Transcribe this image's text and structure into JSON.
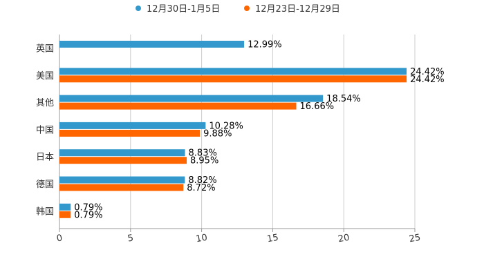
{
  "colors": {
    "series_1": "#3399cc",
    "series_2": "#ff6600",
    "grid": "#cccccc",
    "axis": "#999999",
    "text": "#333333",
    "label": "#000000"
  },
  "chart_data": {
    "type": "bar",
    "orientation": "horizontal",
    "title": "",
    "xlabel": "",
    "ylabel": "",
    "xlim": [
      0,
      25
    ],
    "x_ticks": [
      "0",
      "5",
      "10",
      "15",
      "20",
      "25"
    ],
    "x_tick_values": [
      0,
      5,
      10,
      15,
      20,
      25
    ],
    "grid": true,
    "legend_position": "top-center",
    "categories": [
      "英国",
      "美国",
      "其他",
      "中国",
      "日本",
      "德国",
      "韩国"
    ],
    "series": [
      {
        "name": "12月30日-1月5日",
        "values": [
          12.99,
          24.42,
          18.54,
          10.28,
          8.83,
          8.82,
          0.79
        ],
        "labels": [
          "12.99%",
          "24.42%",
          "18.54%",
          "10.28%",
          "8.83%",
          "8.82%",
          "0.79%"
        ]
      },
      {
        "name": "12月23日-12月29日",
        "values": [
          null,
          24.42,
          16.66,
          9.88,
          8.95,
          8.72,
          0.79
        ],
        "labels": [
          "",
          "24.42%",
          "16.66%",
          "9.88%",
          "8.95%",
          "8.72%",
          "0.79%"
        ]
      }
    ]
  }
}
